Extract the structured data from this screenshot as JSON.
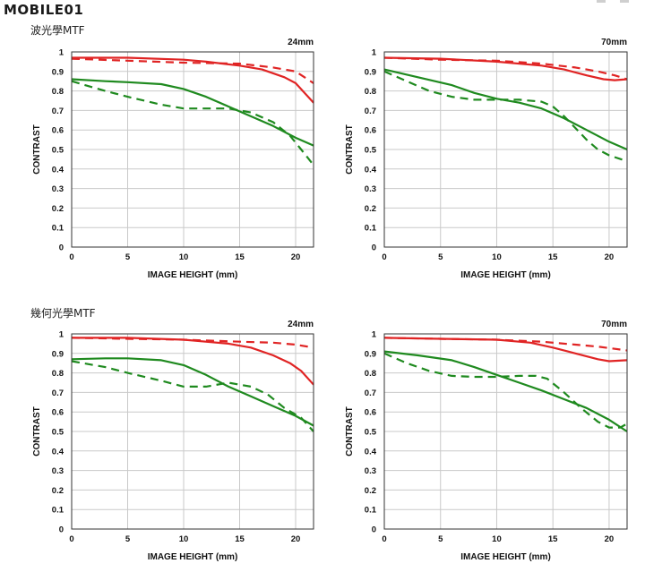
{
  "logo": {
    "text": "MOBILE01"
  },
  "sections": [
    {
      "label": "波光學MTF"
    },
    {
      "label": "幾何光學MTF"
    }
  ],
  "colors": {
    "red": "#e02424",
    "green": "#1f8a1f",
    "grid": "#c9c9c9",
    "frame": "#333333"
  },
  "chart_data": [
    {
      "type": "line",
      "title": "24mm",
      "xlabel": "IMAGE HEIGHT (mm)",
      "ylabel": "CONTRAST",
      "xlim": [
        0,
        21.6
      ],
      "ylim": [
        0,
        1
      ],
      "xticks": [
        "0",
        "5",
        "10",
        "15",
        "20"
      ],
      "yticks": [
        "0",
        "0.1",
        "0.2",
        "0.3",
        "0.4",
        "0.5",
        "0.6",
        "0.7",
        "0.8",
        "0.9",
        "1"
      ],
      "grid": true,
      "series": [
        {
          "color": "red",
          "style": "solid",
          "x": [
            0,
            5,
            10,
            12,
            15,
            17,
            19,
            20,
            21.6
          ],
          "y": [
            0.97,
            0.97,
            0.96,
            0.95,
            0.93,
            0.91,
            0.87,
            0.84,
            0.74
          ]
        },
        {
          "color": "red",
          "style": "dashed",
          "x": [
            0,
            5,
            10,
            15,
            18,
            20,
            21.6
          ],
          "y": [
            0.965,
            0.955,
            0.945,
            0.94,
            0.92,
            0.9,
            0.84
          ]
        },
        {
          "color": "green",
          "style": "solid",
          "x": [
            0,
            3,
            5,
            8,
            10,
            12,
            14,
            16,
            18,
            20,
            21.6
          ],
          "y": [
            0.86,
            0.85,
            0.845,
            0.835,
            0.81,
            0.77,
            0.72,
            0.67,
            0.62,
            0.56,
            0.52
          ]
        },
        {
          "color": "green",
          "style": "dashed",
          "x": [
            0,
            3,
            5,
            8,
            10,
            12,
            14,
            16,
            18,
            19.5,
            20.5,
            21.6
          ],
          "y": [
            0.85,
            0.8,
            0.77,
            0.73,
            0.71,
            0.71,
            0.71,
            0.69,
            0.64,
            0.57,
            0.5,
            0.42
          ]
        }
      ]
    },
    {
      "type": "line",
      "title": "70mm",
      "xlabel": "IMAGE HEIGHT (mm)",
      "ylabel": "CONTRAST",
      "xlim": [
        0,
        21.6
      ],
      "ylim": [
        0,
        1
      ],
      "xticks": [
        "0",
        "5",
        "10",
        "15",
        "20"
      ],
      "yticks": [
        "0",
        "0.1",
        "0.2",
        "0.3",
        "0.4",
        "0.5",
        "0.6",
        "0.7",
        "0.8",
        "0.9",
        "1"
      ],
      "grid": true,
      "series": [
        {
          "color": "red",
          "style": "solid",
          "x": [
            0,
            5,
            10,
            14,
            16,
            18,
            19.5,
            20.5,
            21.6
          ],
          "y": [
            0.97,
            0.965,
            0.95,
            0.93,
            0.91,
            0.88,
            0.86,
            0.855,
            0.86
          ]
        },
        {
          "color": "red",
          "style": "dashed",
          "x": [
            0,
            5,
            10,
            14,
            17,
            19,
            20.5,
            21.6
          ],
          "y": [
            0.97,
            0.96,
            0.955,
            0.94,
            0.92,
            0.9,
            0.88,
            0.86
          ]
        },
        {
          "color": "green",
          "style": "solid",
          "x": [
            0,
            3,
            6,
            8,
            10,
            12,
            14,
            16,
            18,
            20,
            21.6
          ],
          "y": [
            0.91,
            0.87,
            0.83,
            0.79,
            0.76,
            0.74,
            0.71,
            0.66,
            0.6,
            0.54,
            0.5
          ]
        },
        {
          "color": "green",
          "style": "dashed",
          "x": [
            0,
            2,
            4,
            6,
            8,
            10,
            12,
            14,
            15,
            16,
            17,
            18,
            19,
            20,
            21.6
          ],
          "y": [
            0.9,
            0.85,
            0.8,
            0.77,
            0.755,
            0.755,
            0.755,
            0.745,
            0.72,
            0.67,
            0.61,
            0.55,
            0.5,
            0.47,
            0.44
          ]
        }
      ]
    },
    {
      "type": "line",
      "title": "24mm",
      "xlabel": "IMAGE HEIGHT (mm)",
      "ylabel": "CONTRAST",
      "xlim": [
        0,
        21.6
      ],
      "ylim": [
        0,
        1
      ],
      "xticks": [
        "0",
        "5",
        "10",
        "15",
        "20"
      ],
      "yticks": [
        "0",
        "0.1",
        "0.2",
        "0.3",
        "0.4",
        "0.5",
        "0.6",
        "0.7",
        "0.8",
        "0.9",
        "1"
      ],
      "grid": true,
      "series": [
        {
          "color": "red",
          "style": "solid",
          "x": [
            0,
            5,
            10,
            14,
            16,
            18,
            19.5,
            20.5,
            21.6
          ],
          "y": [
            0.98,
            0.98,
            0.97,
            0.95,
            0.93,
            0.89,
            0.85,
            0.81,
            0.74
          ]
        },
        {
          "color": "red",
          "style": "dashed",
          "x": [
            0,
            5,
            10,
            15,
            18,
            20,
            21.6
          ],
          "y": [
            0.98,
            0.975,
            0.97,
            0.96,
            0.955,
            0.945,
            0.93
          ]
        },
        {
          "color": "green",
          "style": "solid",
          "x": [
            0,
            3,
            5,
            8,
            10,
            12,
            14,
            16,
            18,
            20,
            21.6
          ],
          "y": [
            0.87,
            0.875,
            0.875,
            0.865,
            0.84,
            0.79,
            0.73,
            0.68,
            0.63,
            0.58,
            0.53
          ]
        },
        {
          "color": "green",
          "style": "dashed",
          "x": [
            0,
            3,
            5,
            8,
            10,
            12,
            14,
            16,
            17.5,
            19,
            20.5,
            21.6
          ],
          "y": [
            0.86,
            0.83,
            0.8,
            0.76,
            0.73,
            0.73,
            0.75,
            0.73,
            0.69,
            0.62,
            0.57,
            0.5
          ]
        }
      ]
    },
    {
      "type": "line",
      "title": "70mm",
      "xlabel": "IMAGE HEIGHT (mm)",
      "ylabel": "CONTRAST",
      "xlim": [
        0,
        21.6
      ],
      "ylim": [
        0,
        1
      ],
      "xticks": [
        "0",
        "5",
        "10",
        "15",
        "20"
      ],
      "yticks": [
        "0",
        "0.1",
        "0.2",
        "0.3",
        "0.4",
        "0.5",
        "0.6",
        "0.7",
        "0.8",
        "0.9",
        "1"
      ],
      "grid": true,
      "series": [
        {
          "color": "red",
          "style": "solid",
          "x": [
            0,
            5,
            10,
            13,
            15,
            17,
            19,
            20,
            21.6
          ],
          "y": [
            0.98,
            0.975,
            0.97,
            0.955,
            0.93,
            0.9,
            0.87,
            0.86,
            0.865
          ]
        },
        {
          "color": "red",
          "style": "dashed",
          "x": [
            0,
            5,
            10,
            14,
            17,
            19,
            21.6
          ],
          "y": [
            0.98,
            0.975,
            0.97,
            0.96,
            0.945,
            0.935,
            0.915
          ]
        },
        {
          "color": "green",
          "style": "solid",
          "x": [
            0,
            3,
            6,
            8,
            10,
            12,
            14,
            16,
            18,
            20,
            21.6
          ],
          "y": [
            0.91,
            0.89,
            0.865,
            0.83,
            0.79,
            0.75,
            0.71,
            0.665,
            0.62,
            0.56,
            0.5
          ]
        },
        {
          "color": "green",
          "style": "dashed",
          "x": [
            0,
            2,
            4,
            6,
            8,
            10,
            12,
            13.5,
            14.5,
            16,
            17.5,
            19,
            20,
            21,
            21.6
          ],
          "y": [
            0.9,
            0.85,
            0.81,
            0.785,
            0.78,
            0.78,
            0.785,
            0.785,
            0.77,
            0.7,
            0.62,
            0.55,
            0.52,
            0.52,
            0.54
          ]
        }
      ]
    }
  ]
}
